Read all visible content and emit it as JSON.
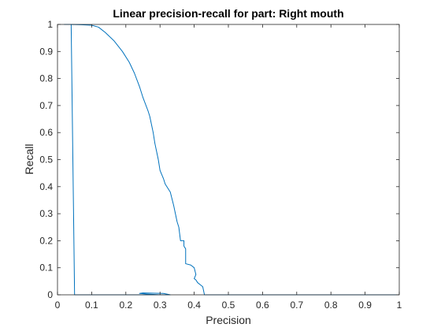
{
  "chart_data": {
    "type": "line",
    "title": "Linear precision-recall for part: Right mouth",
    "xlabel": "Precision",
    "ylabel": "Recall",
    "xlim": [
      0,
      1
    ],
    "ylim": [
      0,
      1
    ],
    "xticks": [
      0,
      0.1,
      0.2,
      0.3,
      0.4,
      0.5,
      0.6,
      0.7,
      0.8,
      0.9,
      1
    ],
    "xtick_labels": [
      "0",
      "0.1",
      "0.2",
      "0.3",
      "0.4",
      "0.5",
      "0.6",
      "0.7",
      "0.8",
      "0.9",
      "1"
    ],
    "yticks": [
      0,
      0.1,
      0.2,
      0.3,
      0.4,
      0.5,
      0.6,
      0.7,
      0.8,
      0.9,
      1
    ],
    "ytick_labels": [
      "0",
      "0.1",
      "0.2",
      "0.3",
      "0.4",
      "0.5",
      "0.6",
      "0.7",
      "0.8",
      "0.9",
      "1"
    ],
    "grid": false,
    "line_color": "#0072bd",
    "series": [
      {
        "name": "Right mouth",
        "x": [
          1.0,
          0.43,
          0.425,
          0.41,
          0.405,
          0.4,
          0.405,
          0.4,
          0.39,
          0.375,
          0.375,
          0.37,
          0.37,
          0.36,
          0.355,
          0.35,
          0.345,
          0.34,
          0.33,
          0.315,
          0.31,
          0.3,
          0.295,
          0.29,
          0.285,
          0.28,
          0.275,
          0.27,
          0.265,
          0.25,
          0.24,
          0.225,
          0.21,
          0.19,
          0.165,
          0.14,
          0.12,
          0.1,
          0.07,
          0.04,
          0.02,
          0.04,
          0.05,
          0.1,
          0.2,
          0.28,
          0.32,
          0.33,
          0.31,
          0.25,
          0.24,
          0.26,
          0.3
        ],
        "y": [
          0.0,
          0.0,
          0.03,
          0.045,
          0.055,
          0.06,
          0.075,
          0.1,
          0.11,
          0.115,
          0.17,
          0.18,
          0.2,
          0.2,
          0.25,
          0.27,
          0.3,
          0.33,
          0.38,
          0.41,
          0.43,
          0.46,
          0.5,
          0.53,
          0.56,
          0.6,
          0.63,
          0.66,
          0.68,
          0.73,
          0.77,
          0.82,
          0.86,
          0.9,
          0.94,
          0.97,
          0.99,
          0.997,
          0.999,
          1.0,
          1.0,
          1.0,
          0.0,
          0.0,
          0.0,
          0.0,
          0.0,
          0.0,
          0.005,
          0.007,
          0.005,
          0.003,
          0.0
        ]
      }
    ]
  }
}
